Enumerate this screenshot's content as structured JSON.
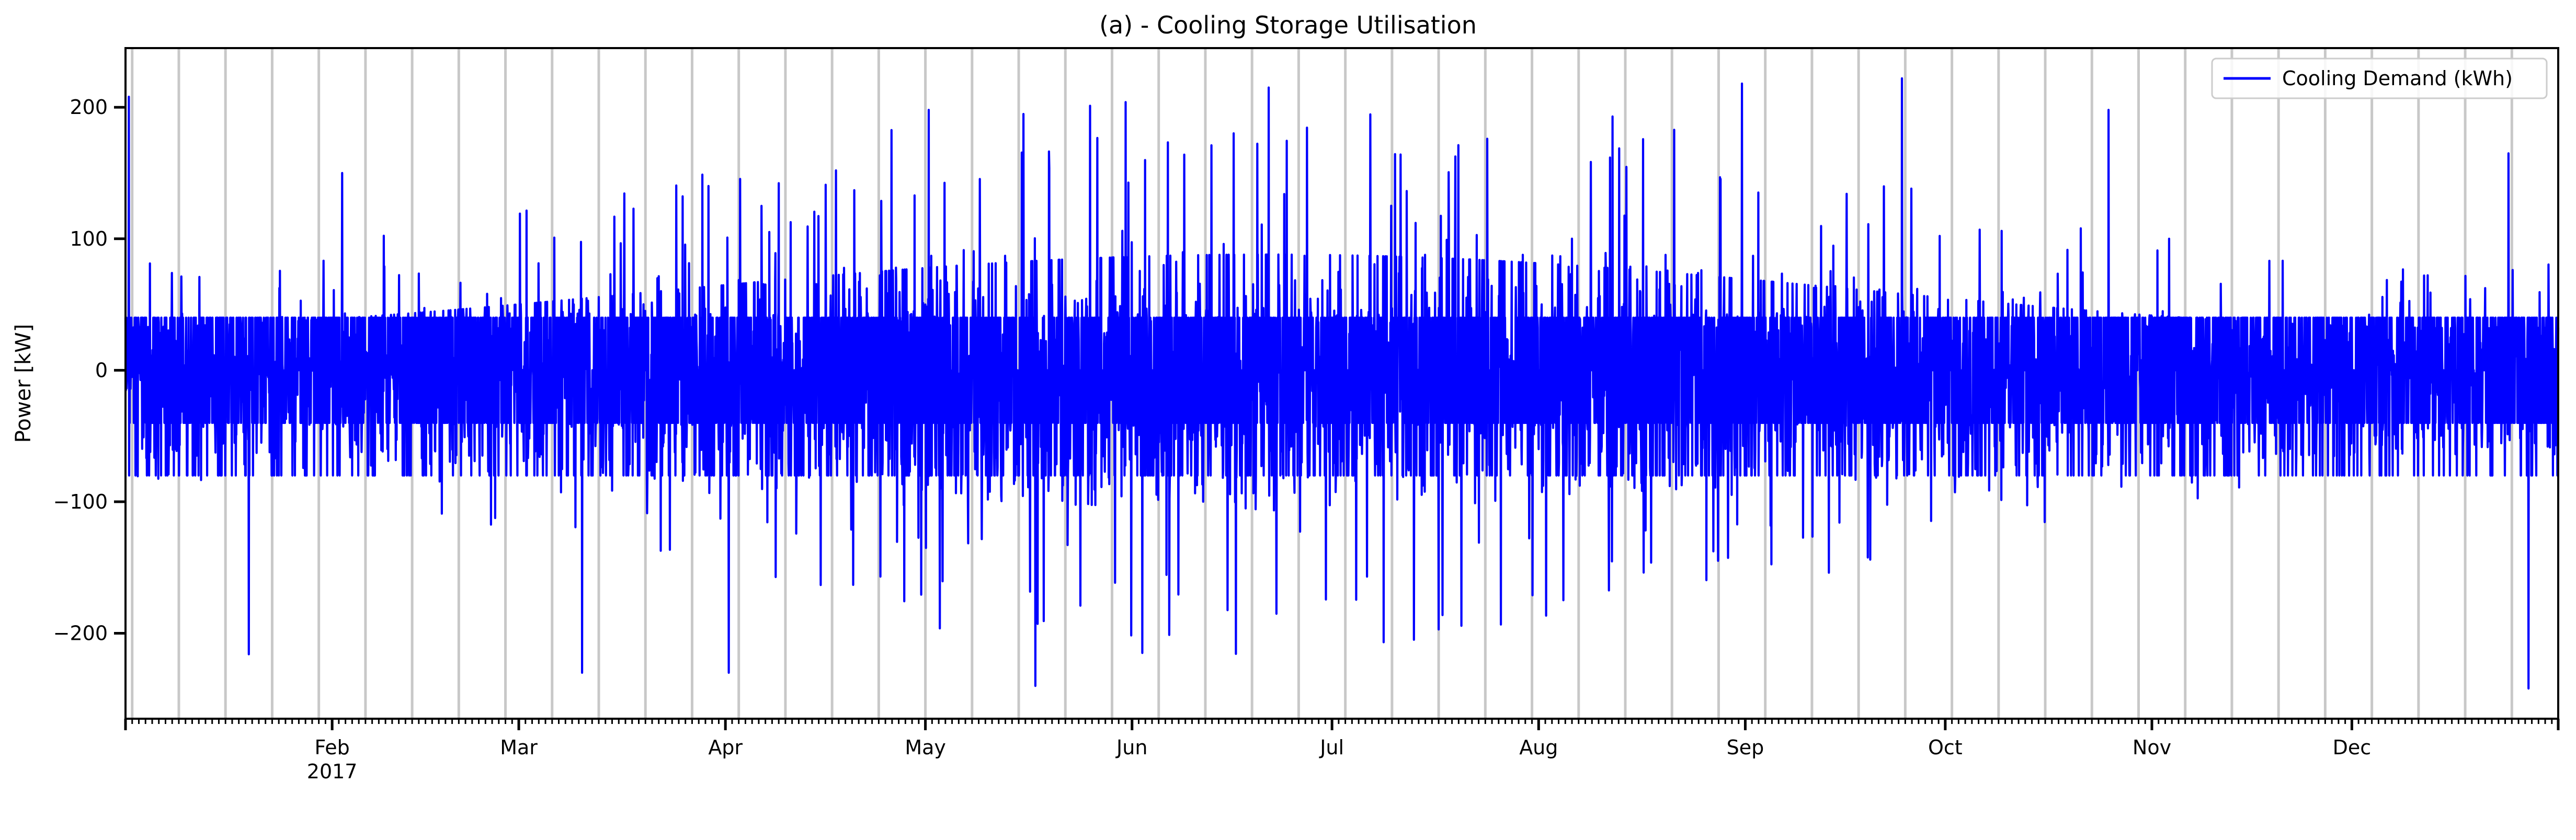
{
  "chart_data": {
    "type": "line",
    "title": "(a) - Cooling Storage Utilisation",
    "xlabel": "",
    "ylabel": "Power [kW]",
    "xlim": [
      "2017-01-01",
      "2017-12-31"
    ],
    "ylim": [
      -265,
      245
    ],
    "y_ticks": [
      -200,
      -100,
      0,
      100,
      200
    ],
    "x_ticks": [
      {
        "date": "2017-02-01",
        "label": "Feb",
        "sublabel": "2017"
      },
      {
        "date": "2017-03-01",
        "label": "Mar"
      },
      {
        "date": "2017-04-01",
        "label": "Apr"
      },
      {
        "date": "2017-05-01",
        "label": "May"
      },
      {
        "date": "2017-06-01",
        "label": "Jun"
      },
      {
        "date": "2017-07-01",
        "label": "Jul"
      },
      {
        "date": "2017-08-01",
        "label": "Aug"
      },
      {
        "date": "2017-09-01",
        "label": "Sep"
      },
      {
        "date": "2017-10-01",
        "label": "Oct"
      },
      {
        "date": "2017-11-01",
        "label": "Nov"
      },
      {
        "date": "2017-12-01",
        "label": "Dec"
      }
    ],
    "grid": "vertical lines at weekly intervals (light grey)",
    "legend": {
      "placement": "top-right",
      "entries": [
        "Cooling Demand (kWh)"
      ]
    },
    "colors": {
      "series": "#0000ff",
      "grid": "#c8c8c8",
      "axis": "#000000"
    },
    "series": [
      {
        "name": "Cooling Demand (kWh)",
        "sampling": "hourly over the year",
        "typical_band": [
          -100,
          60
        ],
        "max": 222,
        "min": -242,
        "notable_points": [
          {
            "date": "2017-01-01",
            "value": 208
          },
          {
            "date": "2017-01-19",
            "value": -216
          },
          {
            "date": "2017-02-02",
            "value": 150
          },
          {
            "date": "2017-03-10",
            "value": -230
          },
          {
            "date": "2017-04-01",
            "value": -230
          },
          {
            "date": "2017-05-01",
            "value": 198
          },
          {
            "date": "2017-05-17",
            "value": -240
          },
          {
            "date": "2017-06-21",
            "value": 215
          },
          {
            "date": "2017-08-31",
            "value": 218
          },
          {
            "date": "2017-09-24",
            "value": 222
          },
          {
            "date": "2017-10-25",
            "value": 198
          },
          {
            "date": "2017-12-24",
            "value": 165
          },
          {
            "date": "2017-12-27",
            "value": -242
          }
        ]
      }
    ]
  }
}
